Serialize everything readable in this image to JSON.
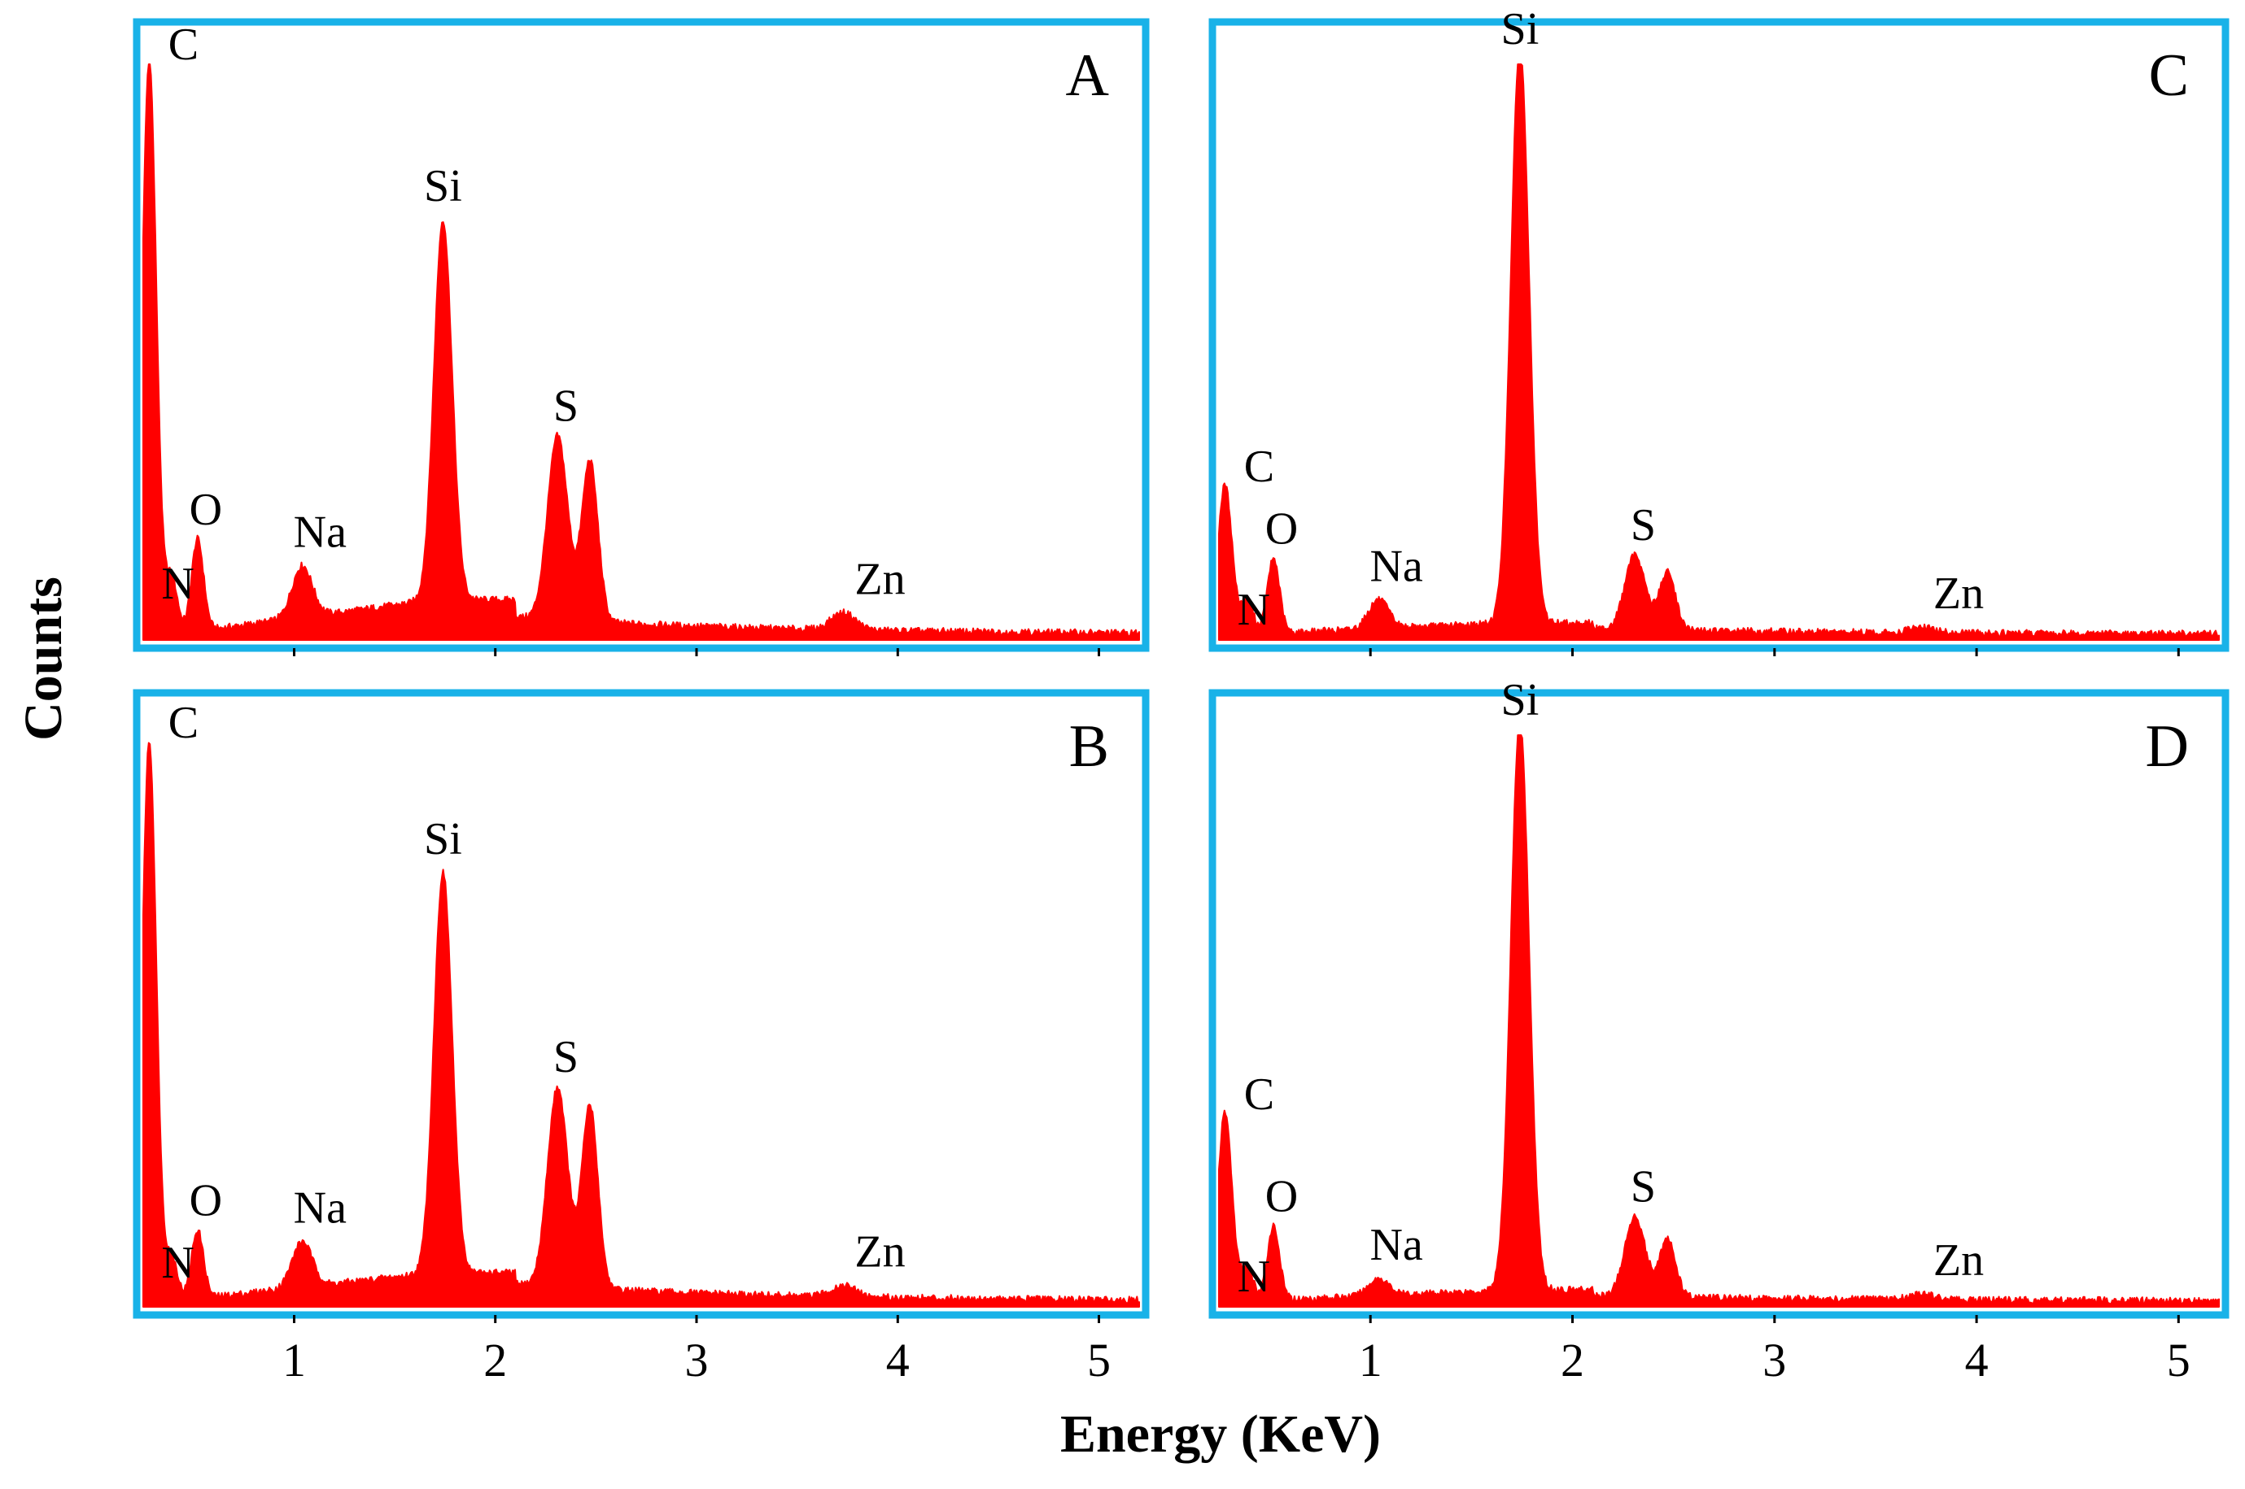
{
  "chart_data": {
    "type": "area",
    "title": "",
    "xlabel": "Energy (KeV)",
    "ylabel": "Counts",
    "x_ticks": [
      "1",
      "2",
      "3",
      "4",
      "5"
    ],
    "grid": false,
    "panels": [
      {
        "letter": "A",
        "xlim": [
          0.25,
          5.2
        ],
        "baseline": 0.01,
        "peaks": [
          {
            "label": "C",
            "energy": 0.28,
            "height": 1.0,
            "width": 0.035
          },
          {
            "label": "N",
            "energy": 0.39,
            "height": 0.1,
            "width": 0.03
          },
          {
            "label": "O",
            "energy": 0.52,
            "height": 0.16,
            "width": 0.03
          },
          {
            "label": "Na",
            "energy": 1.04,
            "height": 0.09,
            "width": 0.05
          },
          {
            "label": "Si",
            "energy": 1.74,
            "height": 0.66,
            "width": 0.045
          },
          {
            "label": "S",
            "energy": 2.31,
            "height": 0.32,
            "width": 0.05
          },
          {
            "label": "Zn",
            "energy": 3.73,
            "height": 0.03,
            "width": 0.06
          }
        ],
        "extra_peaks": [
          {
            "energy": 2.47,
            "height": 0.28,
            "width": 0.04
          }
        ],
        "background": {
          "rise": 0.06,
          "from": 1.0,
          "to": 1.7,
          "tail": 0.03
        }
      },
      {
        "letter": "B",
        "xlim": [
          0.25,
          5.2
        ],
        "baseline": 0.01,
        "peaks": [
          {
            "label": "C",
            "energy": 0.28,
            "height": 0.98,
            "width": 0.035
          },
          {
            "label": "N",
            "energy": 0.39,
            "height": 0.08,
            "width": 0.03
          },
          {
            "label": "O",
            "energy": 0.52,
            "height": 0.12,
            "width": 0.03
          },
          {
            "label": "Na",
            "energy": 1.04,
            "height": 0.08,
            "width": 0.05
          },
          {
            "label": "Si",
            "energy": 1.74,
            "height": 0.7,
            "width": 0.045
          },
          {
            "label": "S",
            "energy": 2.31,
            "height": 0.35,
            "width": 0.05
          },
          {
            "label": "Zn",
            "energy": 3.73,
            "height": 0.02,
            "width": 0.06
          }
        ],
        "extra_peaks": [
          {
            "energy": 2.47,
            "height": 0.32,
            "width": 0.04
          }
        ],
        "background": {
          "rise": 0.05,
          "from": 1.0,
          "to": 1.7,
          "tail": 0.03
        }
      },
      {
        "letter": "C",
        "xlim": [
          0.25,
          5.2
        ],
        "baseline": 0.01,
        "peaks": [
          {
            "label": "C",
            "energy": 0.28,
            "height": 0.26,
            "width": 0.035
          },
          {
            "label": "N",
            "energy": 0.39,
            "height": 0.06,
            "width": 0.03
          },
          {
            "label": "O",
            "energy": 0.52,
            "height": 0.13,
            "width": 0.03
          },
          {
            "label": "Na",
            "energy": 1.04,
            "height": 0.05,
            "width": 0.05
          },
          {
            "label": "Si",
            "energy": 1.74,
            "height": 1.0,
            "width": 0.045
          },
          {
            "label": "S",
            "energy": 2.31,
            "height": 0.13,
            "width": 0.05
          },
          {
            "label": "Zn",
            "energy": 3.73,
            "height": 0.01,
            "width": 0.06
          }
        ],
        "extra_peaks": [
          {
            "energy": 2.47,
            "height": 0.1,
            "width": 0.04
          }
        ],
        "background": {
          "rise": 0.02,
          "from": 1.0,
          "to": 1.7,
          "tail": 0.01
        }
      },
      {
        "letter": "D",
        "xlim": [
          0.25,
          5.2
        ],
        "baseline": 0.01,
        "peaks": [
          {
            "label": "C",
            "energy": 0.28,
            "height": 0.33,
            "width": 0.035
          },
          {
            "label": "N",
            "energy": 0.39,
            "height": 0.06,
            "width": 0.03
          },
          {
            "label": "O",
            "energy": 0.52,
            "height": 0.13,
            "width": 0.03
          },
          {
            "label": "Na",
            "energy": 1.04,
            "height": 0.03,
            "width": 0.05
          },
          {
            "label": "Si",
            "energy": 1.74,
            "height": 1.0,
            "width": 0.045
          },
          {
            "label": "S",
            "energy": 2.31,
            "height": 0.14,
            "width": 0.05
          },
          {
            "label": "Zn",
            "energy": 3.73,
            "height": 0.01,
            "width": 0.06
          }
        ],
        "extra_peaks": [
          {
            "energy": 2.47,
            "height": 0.1,
            "width": 0.04
          }
        ],
        "background": {
          "rise": 0.02,
          "from": 1.0,
          "to": 1.7,
          "tail": 0.01
        }
      }
    ]
  },
  "colors": {
    "spectrum": "#ff0000",
    "frame": "#19b2e8",
    "text": "#000000"
  }
}
